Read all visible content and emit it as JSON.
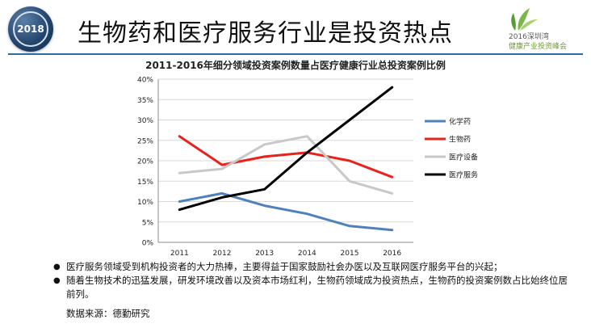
{
  "header": {
    "badge_year": "2018",
    "title": "生物药和医疗服务行业是投资热点",
    "logo_year": "2016深圳湾",
    "logo_sub": "健康产业投资峰会"
  },
  "chart_data": {
    "type": "line",
    "title": "2011-2016年细分领域投资案例数量占医疗健康行业总投资案例比例",
    "xlabel": "",
    "ylabel": "",
    "categories": [
      "2011",
      "2012",
      "2013",
      "2014",
      "2015",
      "2016"
    ],
    "ylim": [
      0,
      40
    ],
    "y_ticks": [
      "0%",
      "5%",
      "10%",
      "15%",
      "20%",
      "25%",
      "30%",
      "35%",
      "40%"
    ],
    "grid": true,
    "legend_position": "right",
    "series": [
      {
        "name": "化学药",
        "color": "#4f81bd",
        "values": [
          10,
          12,
          9,
          7,
          4,
          3
        ]
      },
      {
        "name": "生物药",
        "color": "#e8231c",
        "values": [
          26,
          19,
          21,
          22,
          20,
          16
        ]
      },
      {
        "name": "医疗设备",
        "color": "#c8c8c8",
        "values": [
          17,
          18,
          24,
          26,
          15,
          12
        ]
      },
      {
        "name": "医疗服务",
        "color": "#000000",
        "values": [
          8,
          11,
          13,
          22,
          30,
          38
        ]
      }
    ]
  },
  "bullets": [
    "医疗服务领域受到机构投资者的大力热捧，主要得益于国家鼓励社会办医以及互联网医疗服务平台的兴起；",
    "随着生物技术的迅猛发展，研发环境改善以及资本市场红利，生物药领域成为投资热点，生物药的投资案例数占比始终位居前列。"
  ],
  "source": "数据来源：德勤研究"
}
